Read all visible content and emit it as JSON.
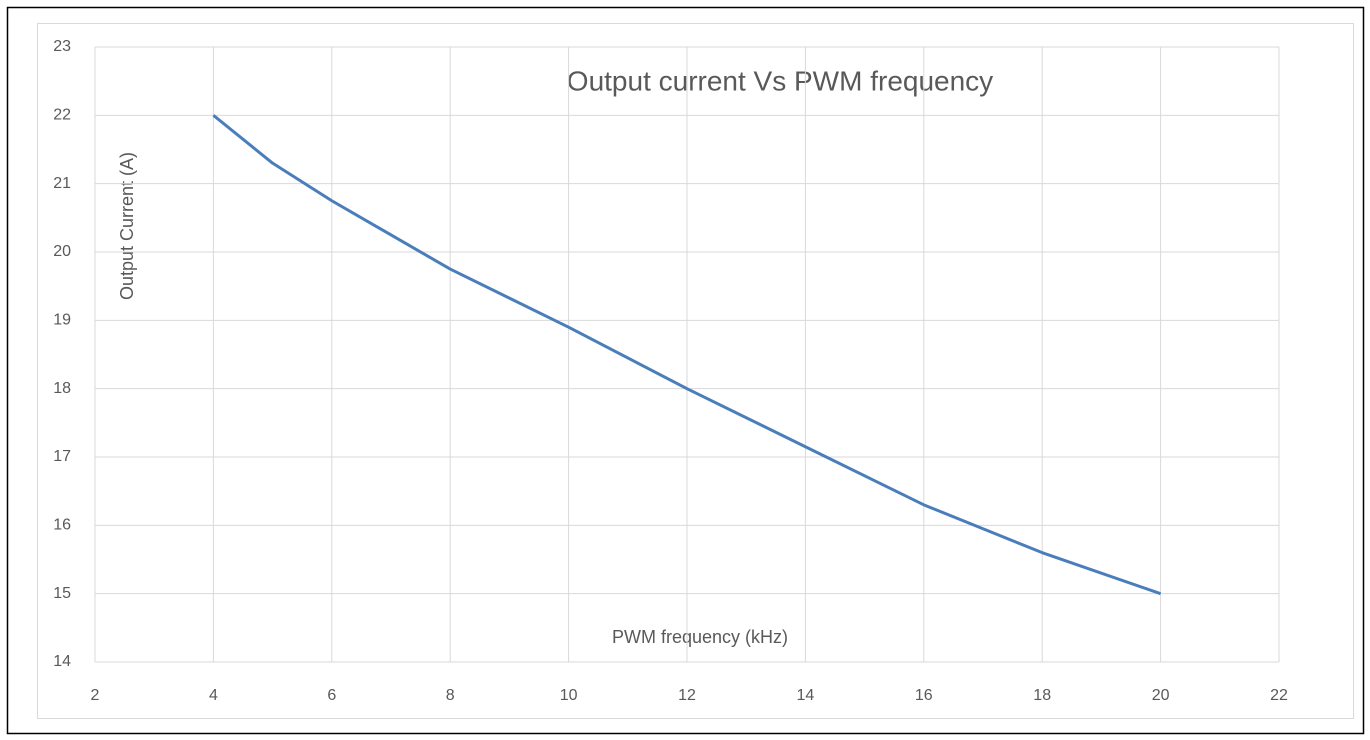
{
  "chart_data": {
    "type": "line",
    "title": "Output current Vs PWM frequency",
    "x_label": "PWM frequency (kHz)",
    "y_label": "Output Current (A)",
    "x": [
      4,
      5,
      6,
      8,
      10,
      12,
      14,
      16,
      17,
      18,
      20
    ],
    "series": [
      {
        "name": "Output Current (A)",
        "color": "#4a7ebb",
        "values": [
          22,
          21.3,
          20.75,
          19.75,
          18.9,
          18.0,
          17.15,
          16.3,
          15.95,
          15.6,
          15.0
        ]
      }
    ],
    "xlim": [
      2,
      22
    ],
    "xticks": [
      2,
      4,
      6,
      8,
      10,
      12,
      14,
      16,
      18,
      20,
      22
    ],
    "ylim": [
      14,
      23
    ],
    "yticks": [
      14,
      15,
      16,
      17,
      18,
      19,
      20,
      21,
      22,
      23
    ],
    "grid": true
  }
}
